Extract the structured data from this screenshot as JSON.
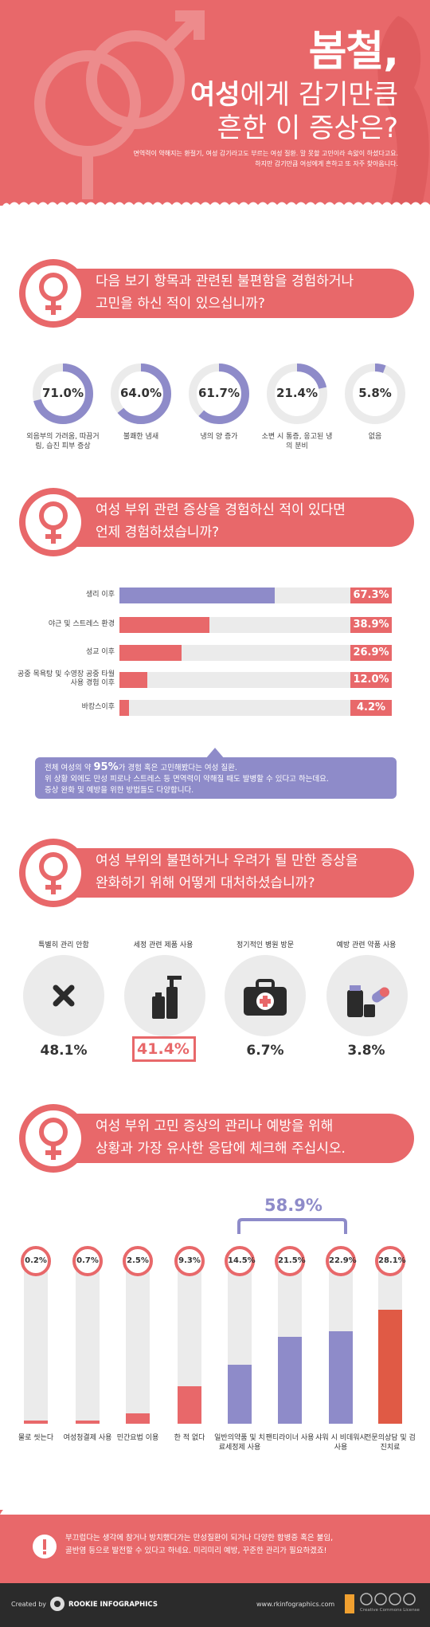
{
  "header": {
    "title_line1": "봄철,",
    "title_bold": "여성",
    "title_line2_rest": "에게 감기만큼",
    "title_line3": "흔한 이 증상은?",
    "subtitle_line1": "면역력이 약해지는 환절기, 여성 감기라고도 부르는 여성 질환. 말 못할 고민이라 속앓이 하셨다고요.",
    "subtitle_line2": "하지만 감기만큼 여성에게 흔하고 또 자주 찾아옵니다."
  },
  "q1": {
    "line1": "다음 보기 항목과 관련된 불편함을 경험하거나",
    "line2": "고민을 하신 적이 있으십니까?"
  },
  "q2": {
    "line1": "여성 부위 관련 증상을 경험하신 적이 있다면",
    "line2": "언제 경험하셨습니까?"
  },
  "q3": {
    "line1": "여성 부위의 불편하거나 우려가 될 만한 증상을",
    "line2": "완화하기 위해 어떻게 대처하셨습니까?"
  },
  "q4": {
    "line1": "여성 부위 고민 증상의 관리나 예방을 위해",
    "line2": "상황과 가장 유사한 응답에 체크해 주십시오.",
    "bracket_total": "58.9%"
  },
  "note": {
    "pre": "전체 여성의 약 ",
    "highlight": "95%",
    "post": "가 경험 혹은 고민해봤다는 여성 질환.",
    "line2": "위 상황 외에도 만성 피로나 스트레스 등 면역력이 약해질 때도 발병할 수 있다고 하는데요.",
    "line3": "증상 완화 및 예방을 위한 방법들도 다양합니다."
  },
  "q3_items": [
    {
      "label": "특별히 관리 안함",
      "value": "48.1%",
      "icon": "x-icon"
    },
    {
      "label": "세정 관련 제품 사용",
      "value": "41.4%",
      "icon": "cleanser-bottle-icon"
    },
    {
      "label": "정기적인 병원 방문",
      "value": "6.7%",
      "icon": "first-aid-kit-icon"
    },
    {
      "label": "예방 관련 약품 사용",
      "value": "3.8%",
      "icon": "medicine-icon"
    }
  ],
  "warning": {
    "line1": "부끄럽다는 생각에 참거나 방치했다가는 만성질환이 되거나 다양한 합병증 혹은 불임,",
    "line2": "골반염 등으로 발전할 수 있다고 하네요. 미리미리 예방, 꾸준한 관리가 필요하겠죠!"
  },
  "footer": {
    "created_by": "Created by",
    "brand": "ROOKIE INFOGRAPHICS",
    "url": "www.rkinfographics.com",
    "license": "Creative Commons License"
  },
  "colors": {
    "coral": "#e8686a",
    "purple": "#8e8bc9",
    "grey": "#ebebeb",
    "dark": "#2b2b2b",
    "red": "#e05a45"
  },
  "chart_data": [
    {
      "type": "pie",
      "categories": [
        "외음부의 가려움, 따끔거림, 습진 피부 증상",
        "불쾌한 냄새",
        "냉의 양 증가",
        "소변 시 통증, 응고된 냉의 분비",
        "없음"
      ],
      "values": [
        71.0,
        64.0,
        61.7,
        21.4,
        5.8
      ],
      "labels": [
        "71.0%",
        "64.0%",
        "61.7%",
        "21.4%",
        "5.8%"
      ]
    },
    {
      "type": "bar",
      "categories": [
        "생리 이후",
        "야근 및 스트레스 환경",
        "성교 이후",
        "공중 목욕탕 및 수영장 공중 타월 사용 경험 이후",
        "바캉스이후"
      ],
      "values": [
        67.3,
        38.9,
        26.9,
        12.0,
        4.2
      ],
      "labels": [
        "67.3%",
        "38.9%",
        "26.9%",
        "12.0%",
        "4.2%"
      ]
    },
    {
      "type": "bar",
      "categories": [
        "물로 씻는다",
        "여성청결제 사용",
        "민간요법 이용",
        "한 적 없다",
        "일반의약품 및 치료세정제 사용",
        "팬티라이너 사용",
        "샤워 시 비데워시 사용",
        "전문의상담 및 검진치료"
      ],
      "values": [
        0.2,
        0.7,
        2.5,
        9.3,
        14.5,
        21.5,
        22.9,
        28.1
      ],
      "labels": [
        "0.2%",
        "0.7%",
        "2.5%",
        "9.3%",
        "14.5%",
        "21.5%",
        "22.9%",
        "28.1%"
      ]
    }
  ]
}
